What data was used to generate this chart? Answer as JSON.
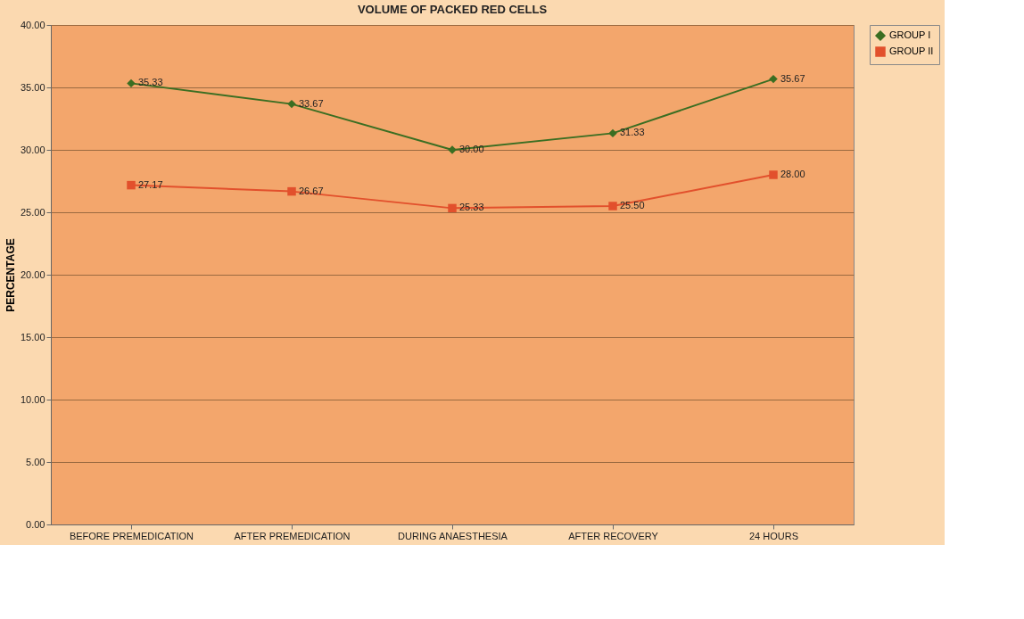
{
  "chart_data": {
    "type": "line",
    "title": "VOLUME OF PACKED RED CELLS",
    "ylabel": "PERCENTAGE",
    "categories": [
      "BEFORE PREMEDICATION",
      "AFTER PREMEDICATION",
      "DURING ANAESTHESIA",
      "AFTER RECOVERY",
      "24 HOURS"
    ],
    "series": [
      {
        "name": "GROUP I",
        "color": "#3b6e22",
        "marker": "diamond",
        "values": [
          35.33,
          33.67,
          30.0,
          31.33,
          35.67
        ],
        "value_labels": [
          "35.33",
          "33.67",
          "30.00",
          "31.33",
          "35.67"
        ]
      },
      {
        "name": "GROUP II",
        "color": "#e2502c",
        "marker": "square",
        "values": [
          27.17,
          26.67,
          25.33,
          25.5,
          28.0
        ],
        "value_labels": [
          "27.17",
          "26.67",
          "25.33",
          "25.50",
          "28.00"
        ]
      }
    ],
    "ylim": [
      0,
      40
    ],
    "yticks": [
      {
        "value": 0,
        "label": "0.00"
      },
      {
        "value": 5,
        "label": "5.00"
      },
      {
        "value": 10,
        "label": "10.00"
      },
      {
        "value": 15,
        "label": "15.00"
      },
      {
        "value": 20,
        "label": "20.00"
      },
      {
        "value": 25,
        "label": "25.00"
      },
      {
        "value": 30,
        "label": "30.00"
      },
      {
        "value": 35,
        "label": "35.00"
      },
      {
        "value": 40,
        "label": "40.00"
      }
    ],
    "grid": "y",
    "legend": "right",
    "line_style": "solid"
  }
}
